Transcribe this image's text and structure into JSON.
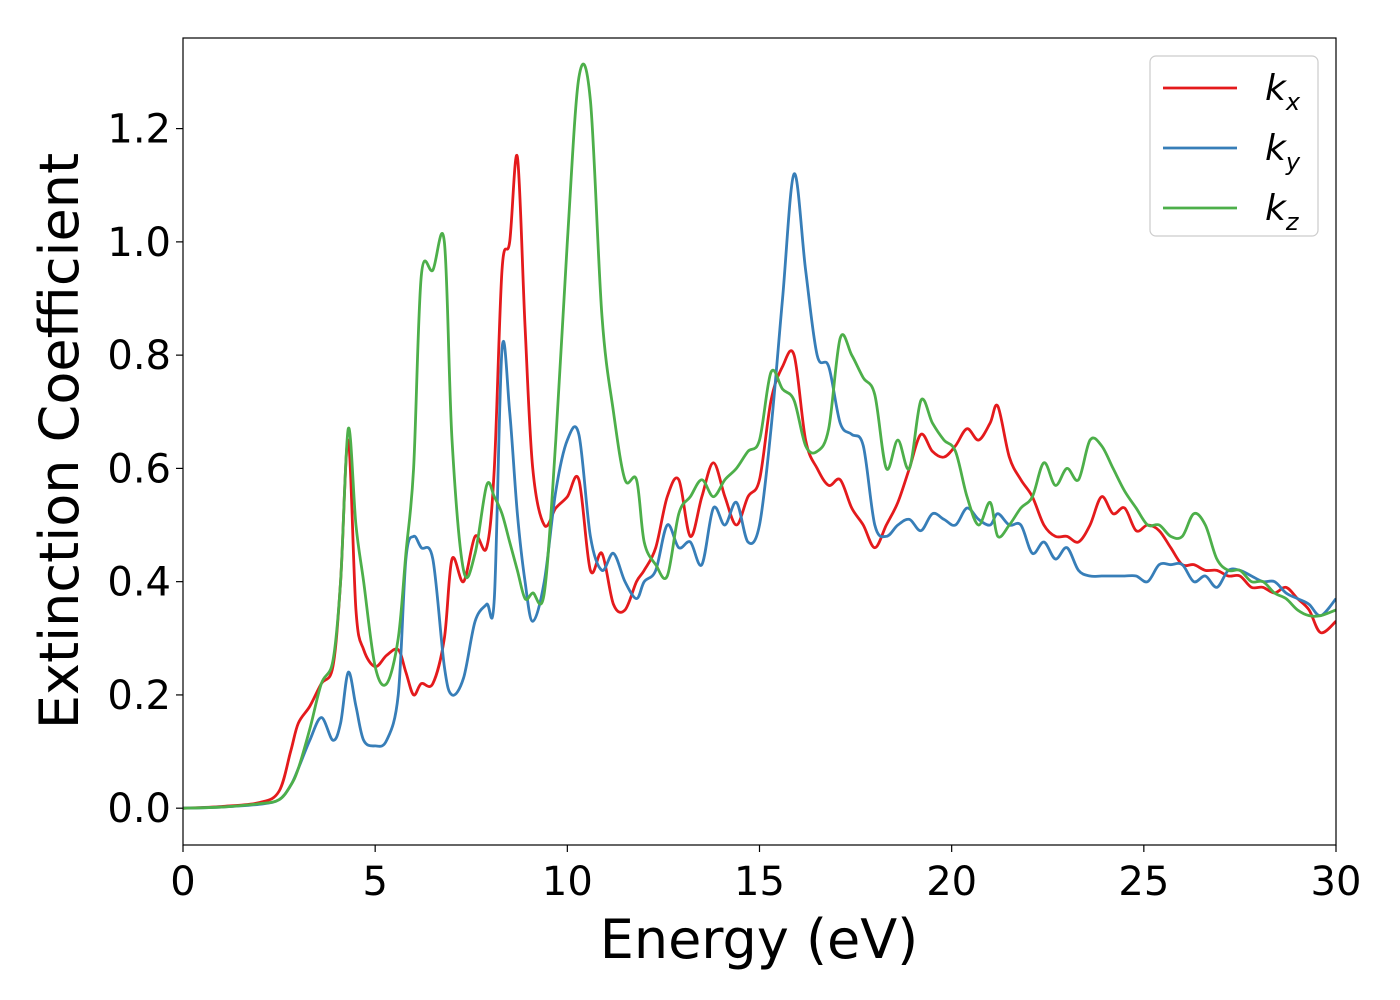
{
  "chart_data": {
    "type": "line",
    "title": "",
    "xlabel": "Energy (eV)",
    "ylabel": "Extinction Coefficient",
    "xlim": [
      0,
      30
    ],
    "ylim": [
      -0.065,
      1.36
    ],
    "xticks": [
      0,
      5,
      10,
      15,
      20,
      25,
      30
    ],
    "xtick_labels": [
      "0",
      "5",
      "10",
      "15",
      "20",
      "25",
      "30"
    ],
    "yticks": [
      0.0,
      0.2,
      0.4,
      0.6,
      0.8,
      1.0,
      1.2
    ],
    "ytick_labels": [
      "0.0",
      "0.2",
      "0.4",
      "0.6",
      "0.8",
      "1.0",
      "1.2"
    ],
    "grid": false,
    "legend_position": "top-right",
    "series": [
      {
        "name": "k_x",
        "legend_base": "k",
        "legend_sub": "x",
        "color": "#e41a1c",
        "x": [
          0,
          1,
          2,
          2.5,
          2.8,
          3.0,
          3.3,
          3.6,
          3.9,
          4.1,
          4.3,
          4.5,
          4.7,
          5.0,
          5.3,
          5.6,
          5.8,
          6.0,
          6.2,
          6.5,
          6.8,
          7.0,
          7.3,
          7.6,
          7.9,
          8.1,
          8.3,
          8.5,
          8.7,
          8.9,
          9.1,
          9.4,
          9.7,
          10.0,
          10.3,
          10.6,
          10.9,
          11.2,
          11.5,
          11.8,
          12.0,
          12.3,
          12.6,
          12.9,
          13.2,
          13.5,
          13.8,
          14.1,
          14.4,
          14.7,
          15.0,
          15.3,
          15.6,
          15.9,
          16.2,
          16.5,
          16.8,
          17.1,
          17.4,
          17.7,
          18.0,
          18.3,
          18.6,
          18.9,
          19.2,
          19.5,
          19.8,
          20.1,
          20.4,
          20.7,
          21.0,
          21.2,
          21.5,
          21.8,
          22.1,
          22.4,
          22.7,
          23.0,
          23.3,
          23.6,
          23.9,
          24.2,
          24.5,
          24.8,
          25.1,
          25.4,
          25.7,
          26.0,
          26.3,
          26.6,
          26.9,
          27.2,
          27.5,
          27.8,
          28.1,
          28.4,
          28.7,
          29.0,
          29.3,
          29.6,
          30.0
        ],
        "y": [
          0,
          0.003,
          0.01,
          0.03,
          0.1,
          0.15,
          0.18,
          0.22,
          0.25,
          0.4,
          0.65,
          0.35,
          0.28,
          0.25,
          0.27,
          0.28,
          0.24,
          0.2,
          0.22,
          0.22,
          0.3,
          0.44,
          0.4,
          0.48,
          0.46,
          0.6,
          0.95,
          1.0,
          1.15,
          0.85,
          0.6,
          0.5,
          0.53,
          0.55,
          0.58,
          0.42,
          0.45,
          0.36,
          0.35,
          0.4,
          0.42,
          0.46,
          0.55,
          0.58,
          0.48,
          0.55,
          0.61,
          0.55,
          0.5,
          0.55,
          0.58,
          0.72,
          0.78,
          0.8,
          0.65,
          0.6,
          0.57,
          0.58,
          0.53,
          0.5,
          0.46,
          0.5,
          0.54,
          0.6,
          0.66,
          0.63,
          0.62,
          0.64,
          0.67,
          0.65,
          0.68,
          0.71,
          0.62,
          0.58,
          0.55,
          0.5,
          0.48,
          0.48,
          0.47,
          0.5,
          0.55,
          0.52,
          0.53,
          0.49,
          0.5,
          0.49,
          0.46,
          0.43,
          0.43,
          0.42,
          0.42,
          0.41,
          0.41,
          0.39,
          0.39,
          0.38,
          0.39,
          0.37,
          0.35,
          0.31,
          0.33
        ]
      },
      {
        "name": "k_y",
        "legend_base": "k",
        "legend_sub": "y",
        "color": "#377eb8",
        "x": [
          0,
          1,
          2,
          2.5,
          2.8,
          3.0,
          3.3,
          3.6,
          3.9,
          4.1,
          4.3,
          4.5,
          4.7,
          5.0,
          5.3,
          5.6,
          5.8,
          6.0,
          6.2,
          6.5,
          6.8,
          7.0,
          7.3,
          7.6,
          7.9,
          8.1,
          8.3,
          8.5,
          8.7,
          8.9,
          9.1,
          9.4,
          9.7,
          10.0,
          10.3,
          10.6,
          10.9,
          11.2,
          11.5,
          11.8,
          12.0,
          12.3,
          12.6,
          12.9,
          13.2,
          13.5,
          13.8,
          14.1,
          14.4,
          14.7,
          15.0,
          15.3,
          15.6,
          15.9,
          16.2,
          16.5,
          16.8,
          17.1,
          17.4,
          17.7,
          18.0,
          18.3,
          18.6,
          18.9,
          19.2,
          19.5,
          19.8,
          20.1,
          20.4,
          20.7,
          21.0,
          21.2,
          21.5,
          21.8,
          22.1,
          22.4,
          22.7,
          23.0,
          23.3,
          23.6,
          23.9,
          24.2,
          24.5,
          24.8,
          25.1,
          25.4,
          25.7,
          26.0,
          26.3,
          26.6,
          26.9,
          27.2,
          27.5,
          27.8,
          28.1,
          28.4,
          28.7,
          29.0,
          29.3,
          29.6,
          30.0
        ],
        "y": [
          0,
          0.002,
          0.007,
          0.015,
          0.04,
          0.07,
          0.12,
          0.16,
          0.12,
          0.15,
          0.24,
          0.18,
          0.12,
          0.11,
          0.12,
          0.2,
          0.44,
          0.48,
          0.46,
          0.44,
          0.25,
          0.2,
          0.23,
          0.33,
          0.36,
          0.37,
          0.81,
          0.7,
          0.52,
          0.4,
          0.33,
          0.4,
          0.56,
          0.65,
          0.66,
          0.48,
          0.42,
          0.45,
          0.4,
          0.37,
          0.4,
          0.42,
          0.5,
          0.46,
          0.47,
          0.43,
          0.53,
          0.5,
          0.54,
          0.47,
          0.5,
          0.67,
          0.9,
          1.12,
          0.95,
          0.8,
          0.78,
          0.68,
          0.66,
          0.64,
          0.5,
          0.48,
          0.5,
          0.51,
          0.49,
          0.52,
          0.51,
          0.5,
          0.53,
          0.51,
          0.5,
          0.52,
          0.5,
          0.5,
          0.45,
          0.47,
          0.44,
          0.46,
          0.42,
          0.41,
          0.41,
          0.41,
          0.41,
          0.41,
          0.4,
          0.43,
          0.43,
          0.43,
          0.4,
          0.41,
          0.39,
          0.42,
          0.42,
          0.41,
          0.4,
          0.4,
          0.38,
          0.37,
          0.36,
          0.34,
          0.37
        ]
      },
      {
        "name": "k_z",
        "legend_base": "k",
        "legend_sub": "z",
        "color": "#4daf4a",
        "x": [
          0,
          1,
          2,
          2.5,
          2.8,
          3.0,
          3.3,
          3.6,
          3.9,
          4.1,
          4.3,
          4.5,
          4.7,
          5.0,
          5.3,
          5.6,
          5.8,
          6.0,
          6.2,
          6.5,
          6.8,
          7.0,
          7.3,
          7.6,
          7.9,
          8.1,
          8.3,
          8.5,
          8.7,
          8.9,
          9.1,
          9.4,
          9.7,
          10.0,
          10.3,
          10.6,
          10.9,
          11.2,
          11.5,
          11.8,
          12.0,
          12.3,
          12.6,
          12.9,
          13.2,
          13.5,
          13.8,
          14.1,
          14.4,
          14.7,
          15.0,
          15.3,
          15.6,
          15.9,
          16.2,
          16.5,
          16.8,
          17.1,
          17.4,
          17.7,
          18.0,
          18.3,
          18.6,
          18.9,
          19.2,
          19.5,
          19.8,
          20.1,
          20.4,
          20.7,
          21.0,
          21.2,
          21.5,
          21.8,
          22.1,
          22.4,
          22.7,
          23.0,
          23.3,
          23.6,
          23.9,
          24.2,
          24.5,
          24.8,
          25.1,
          25.4,
          25.7,
          26.0,
          26.3,
          26.6,
          26.9,
          27.2,
          27.5,
          27.8,
          28.1,
          28.4,
          28.7,
          29.0,
          29.3,
          29.6,
          30.0
        ],
        "y": [
          0,
          0.002,
          0.008,
          0.015,
          0.04,
          0.07,
          0.14,
          0.22,
          0.26,
          0.4,
          0.67,
          0.5,
          0.4,
          0.25,
          0.22,
          0.3,
          0.45,
          0.6,
          0.94,
          0.95,
          1.0,
          0.65,
          0.42,
          0.45,
          0.57,
          0.55,
          0.52,
          0.47,
          0.42,
          0.37,
          0.38,
          0.38,
          0.65,
          1.0,
          1.29,
          1.25,
          0.87,
          0.7,
          0.58,
          0.58,
          0.47,
          0.43,
          0.41,
          0.52,
          0.55,
          0.58,
          0.55,
          0.58,
          0.6,
          0.63,
          0.65,
          0.77,
          0.74,
          0.72,
          0.64,
          0.63,
          0.67,
          0.83,
          0.8,
          0.76,
          0.73,
          0.6,
          0.65,
          0.6,
          0.72,
          0.68,
          0.65,
          0.63,
          0.55,
          0.5,
          0.54,
          0.48,
          0.5,
          0.53,
          0.55,
          0.61,
          0.57,
          0.6,
          0.58,
          0.65,
          0.64,
          0.6,
          0.56,
          0.53,
          0.5,
          0.5,
          0.48,
          0.48,
          0.52,
          0.5,
          0.44,
          0.42,
          0.42,
          0.4,
          0.4,
          0.38,
          0.37,
          0.35,
          0.34,
          0.34,
          0.35
        ]
      }
    ]
  }
}
